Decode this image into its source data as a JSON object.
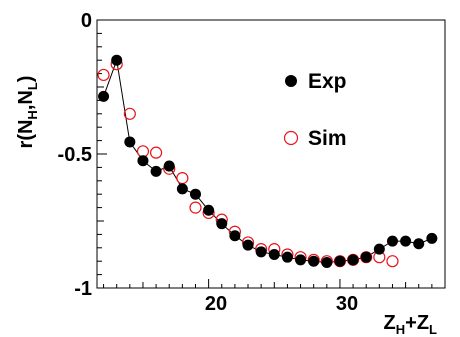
{
  "chart_data": {
    "type": "scatter",
    "xlabel_main": "Z",
    "xlabel_sub1": "H",
    "xlabel_mid": "+Z",
    "xlabel_sub2": "L",
    "ylabel_main": "r(N",
    "ylabel_sub1": "H",
    "ylabel_mid": ",N",
    "ylabel_sub2": "L",
    "ylabel_end": ")",
    "xlim": [
      11.5,
      38
    ],
    "ylim": [
      -1,
      0
    ],
    "xticks": [
      20,
      30
    ],
    "yticks": [
      0,
      -0.5,
      -1
    ],
    "xtick_labels": [
      "20",
      "30"
    ],
    "ytick_labels": [
      "0",
      "-0.5",
      "-1"
    ],
    "legend_position": "top-right",
    "series": [
      {
        "name": "Exp",
        "marker": "filled-circle",
        "color": "#000000",
        "connected": true,
        "x": [
          12,
          13,
          14,
          15,
          16,
          17,
          18,
          19,
          20,
          21,
          22,
          23,
          24,
          25,
          26,
          27,
          28,
          29,
          30,
          31,
          32,
          33,
          34,
          35,
          36,
          37
        ],
        "y": [
          -0.285,
          -0.15,
          -0.455,
          -0.525,
          -0.565,
          -0.545,
          -0.63,
          -0.65,
          -0.71,
          -0.76,
          -0.805,
          -0.84,
          -0.865,
          -0.875,
          -0.885,
          -0.895,
          -0.9,
          -0.905,
          -0.9,
          -0.895,
          -0.885,
          -0.855,
          -0.825,
          -0.825,
          -0.835,
          -0.815
        ]
      },
      {
        "name": "Sim",
        "marker": "open-circle",
        "color": "#e8141e",
        "connected": false,
        "x": [
          12,
          13,
          14,
          15,
          16,
          17,
          18,
          19,
          20,
          21,
          22,
          23,
          24,
          25,
          26,
          27,
          28,
          29,
          30,
          31,
          32,
          33,
          34
        ],
        "y": [
          -0.205,
          -0.165,
          -0.35,
          -0.49,
          -0.495,
          -0.555,
          -0.59,
          -0.7,
          -0.72,
          -0.745,
          -0.79,
          -0.83,
          -0.855,
          -0.855,
          -0.875,
          -0.885,
          -0.895,
          -0.9,
          -0.9,
          -0.895,
          -0.885,
          -0.885,
          -0.9
        ]
      }
    ]
  }
}
